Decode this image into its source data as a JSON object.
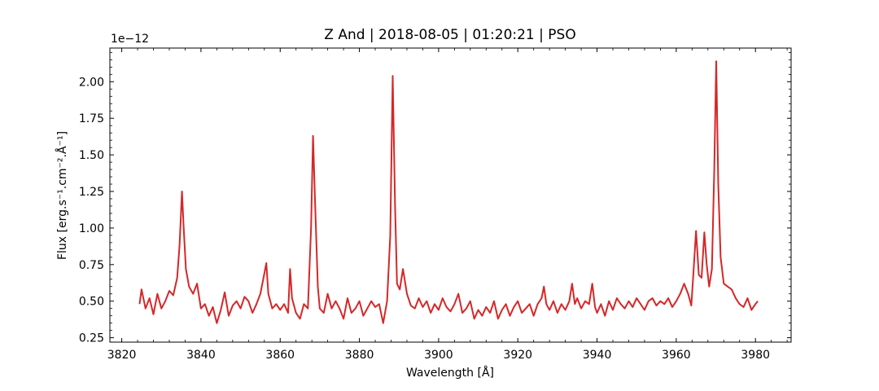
{
  "chart_data": {
    "type": "line",
    "title": "Z And | 2018-08-05 | 01:20:21 | PSO",
    "xlabel": "Wavelength [Å]",
    "ylabel": "Flux [erg.s⁻¹.cm⁻².Å⁻¹]",
    "y_offset_label": "1e−12",
    "xlim": [
      3817,
      3989
    ],
    "ylim": [
      0.22,
      2.23
    ],
    "x_ticks": [
      3820,
      3840,
      3860,
      3880,
      3900,
      3920,
      3940,
      3960,
      3980
    ],
    "y_ticks": [
      0.25,
      0.5,
      0.75,
      1.0,
      1.25,
      1.5,
      1.75,
      2.0
    ],
    "y_tick_labels": [
      "0.25",
      "0.50",
      "0.75",
      "1.00",
      "1.25",
      "1.50",
      "1.75",
      "2.00"
    ],
    "grid": false,
    "series": [
      {
        "color": "#d62728",
        "x": [
          3824.5,
          3825,
          3826,
          3827,
          3828,
          3829,
          3830,
          3831,
          3832,
          3833,
          3834,
          3834.6,
          3835.2,
          3835.6,
          3836.2,
          3837,
          3838,
          3839,
          3840,
          3841,
          3842,
          3843,
          3844,
          3845,
          3846,
          3847,
          3848,
          3849,
          3850,
          3851,
          3852,
          3853,
          3854,
          3855,
          3855.8,
          3856.5,
          3857,
          3858,
          3859,
          3860,
          3861,
          3862,
          3862.5,
          3863,
          3864,
          3865,
          3866,
          3867,
          3867.8,
          3868.3,
          3868.8,
          3869.5,
          3870,
          3871,
          3872,
          3873,
          3874,
          3875,
          3876,
          3877,
          3878,
          3879,
          3880,
          3881,
          3882,
          3883,
          3884,
          3885,
          3886,
          3887,
          3887.8,
          3888.4,
          3889,
          3889.5,
          3890.2,
          3891,
          3892,
          3893,
          3894,
          3895,
          3896,
          3897,
          3898,
          3899,
          3900,
          3901,
          3902,
          3903,
          3904,
          3905,
          3906,
          3907,
          3908,
          3909,
          3910,
          3911,
          3912,
          3913,
          3914,
          3915,
          3916,
          3917,
          3918,
          3919,
          3920,
          3921,
          3922,
          3923,
          3924,
          3925,
          3926,
          3926.6,
          3927.2,
          3928,
          3929,
          3930,
          3931,
          3932,
          3933,
          3933.7,
          3934.4,
          3935,
          3936,
          3937,
          3938,
          3938.8,
          3939.5,
          3940,
          3941,
          3942,
          3943,
          3944,
          3945,
          3946,
          3947,
          3948,
          3949,
          3950,
          3951,
          3952,
          3953,
          3954,
          3955,
          3956,
          3957,
          3958,
          3959,
          3960,
          3961,
          3962,
          3963,
          3963.8,
          3964.4,
          3965,
          3965.7,
          3966.4,
          3967.1,
          3967.7,
          3968.3,
          3969,
          3969.6,
          3970.1,
          3970.6,
          3971.2,
          3972,
          3973,
          3974,
          3975,
          3976,
          3977,
          3978,
          3979,
          3980,
          3980.6
        ],
        "y": [
          0.48,
          0.58,
          0.45,
          0.52,
          0.41,
          0.55,
          0.45,
          0.5,
          0.57,
          0.54,
          0.66,
          0.88,
          1.25,
          1.02,
          0.72,
          0.6,
          0.55,
          0.62,
          0.45,
          0.48,
          0.4,
          0.46,
          0.35,
          0.44,
          0.56,
          0.4,
          0.47,
          0.5,
          0.45,
          0.53,
          0.5,
          0.42,
          0.48,
          0.55,
          0.66,
          0.76,
          0.55,
          0.45,
          0.48,
          0.44,
          0.48,
          0.42,
          0.72,
          0.52,
          0.42,
          0.38,
          0.48,
          0.45,
          1.0,
          1.63,
          1.18,
          0.6,
          0.45,
          0.42,
          0.55,
          0.45,
          0.5,
          0.45,
          0.38,
          0.52,
          0.42,
          0.45,
          0.5,
          0.4,
          0.45,
          0.5,
          0.46,
          0.48,
          0.35,
          0.5,
          0.95,
          2.04,
          1.15,
          0.62,
          0.58,
          0.72,
          0.55,
          0.47,
          0.45,
          0.52,
          0.46,
          0.5,
          0.42,
          0.48,
          0.44,
          0.52,
          0.46,
          0.43,
          0.48,
          0.55,
          0.42,
          0.45,
          0.5,
          0.38,
          0.44,
          0.4,
          0.46,
          0.42,
          0.5,
          0.38,
          0.44,
          0.48,
          0.4,
          0.46,
          0.5,
          0.42,
          0.45,
          0.48,
          0.4,
          0.48,
          0.52,
          0.6,
          0.48,
          0.44,
          0.5,
          0.42,
          0.48,
          0.44,
          0.5,
          0.62,
          0.48,
          0.52,
          0.45,
          0.5,
          0.48,
          0.62,
          0.46,
          0.42,
          0.48,
          0.4,
          0.5,
          0.44,
          0.52,
          0.48,
          0.45,
          0.5,
          0.46,
          0.52,
          0.48,
          0.44,
          0.5,
          0.52,
          0.47,
          0.5,
          0.48,
          0.52,
          0.46,
          0.5,
          0.55,
          0.62,
          0.55,
          0.47,
          0.72,
          0.98,
          0.68,
          0.66,
          0.97,
          0.75,
          0.6,
          0.72,
          1.4,
          2.14,
          1.3,
          0.8,
          0.62,
          0.6,
          0.58,
          0.52,
          0.48,
          0.46,
          0.52,
          0.44,
          0.48,
          0.5
        ]
      }
    ]
  }
}
